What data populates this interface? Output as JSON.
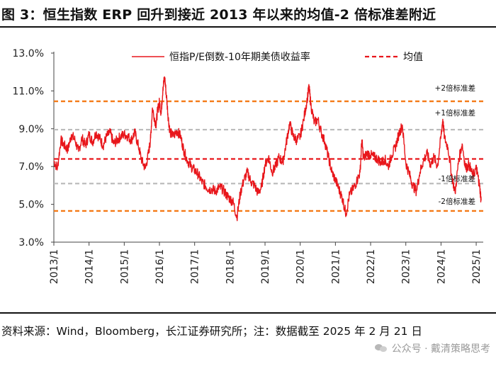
{
  "figure": {
    "title": "图 3：恒生指数 ERP 回升到接近 2013 年以来的均值-2 倍标准差附近",
    "source": "资料来源：Wind，Bloomberg，长江证券研究所；注：数据截至 2025 年 2 月 21 日",
    "watermark": "公众号 · 戴清策略思考"
  },
  "colors": {
    "series": "#e8161b",
    "mean": "#e8161b",
    "sd2": "#f47a16",
    "sd1": "#bdbdbd",
    "axis": "#444444"
  },
  "chart_data": {
    "type": "line",
    "title": "",
    "xlabel": "",
    "ylabel": "",
    "ylim": [
      3.0,
      13.0
    ],
    "yticks": [
      3.0,
      5.0,
      7.0,
      9.0,
      11.0,
      13.0
    ],
    "yticks_labels": [
      "3.0%",
      "5.0%",
      "7.0%",
      "9.0%",
      "11.0%",
      "13.0%"
    ],
    "xlim": [
      2013.0,
      2025.2
    ],
    "xticks": [
      2013,
      2014,
      2015,
      2016,
      2017,
      2018,
      2019,
      2020,
      2021,
      2022,
      2023,
      2024,
      2025
    ],
    "xticks_labels": [
      "2013/1",
      "2014/1",
      "2015/1",
      "2016/1",
      "2017/1",
      "2018/1",
      "2019/1",
      "2020/1",
      "2021/1",
      "2022/1",
      "2023/1",
      "2024/1",
      "2025/1"
    ],
    "grid": false,
    "legend_position": "top",
    "series": [
      {
        "name": "恒指P/E倒数-10年期美债收益率",
        "x": [
          2013.0,
          2013.1,
          2013.2,
          2013.3,
          2013.4,
          2013.5,
          2013.6,
          2013.7,
          2013.8,
          2013.9,
          2014.0,
          2014.1,
          2014.2,
          2014.3,
          2014.4,
          2014.5,
          2014.6,
          2014.7,
          2014.8,
          2014.9,
          2015.0,
          2015.1,
          2015.2,
          2015.3,
          2015.4,
          2015.5,
          2015.6,
          2015.7,
          2015.75,
          2015.8,
          2015.9,
          2015.95,
          2016.0,
          2016.05,
          2016.1,
          2016.15,
          2016.2,
          2016.25,
          2016.3,
          2016.4,
          2016.5,
          2016.6,
          2016.7,
          2016.8,
          2016.9,
          2017.0,
          2017.1,
          2017.2,
          2017.3,
          2017.4,
          2017.5,
          2017.6,
          2017.7,
          2017.8,
          2017.9,
          2018.0,
          2018.1,
          2018.2,
          2018.3,
          2018.4,
          2018.5,
          2018.6,
          2018.7,
          2018.8,
          2018.9,
          2019.0,
          2019.1,
          2019.2,
          2019.3,
          2019.4,
          2019.5,
          2019.6,
          2019.7,
          2019.8,
          2019.9,
          2020.0,
          2020.1,
          2020.2,
          2020.25,
          2020.3,
          2020.4,
          2020.5,
          2020.6,
          2020.7,
          2020.8,
          2020.9,
          2021.0,
          2021.1,
          2021.2,
          2021.3,
          2021.4,
          2021.5,
          2021.6,
          2021.7,
          2021.75,
          2021.8,
          2021.9,
          2022.0,
          2022.1,
          2022.2,
          2022.3,
          2022.4,
          2022.5,
          2022.6,
          2022.7,
          2022.8,
          2022.9,
          2023.0,
          2023.1,
          2023.2,
          2023.3,
          2023.4,
          2023.5,
          2023.6,
          2023.7,
          2023.8,
          2023.9,
          2024.0,
          2024.05,
          2024.1,
          2024.2,
          2024.3,
          2024.4,
          2024.5,
          2024.6,
          2024.7,
          2024.8,
          2024.9,
          2025.0,
          2025.05,
          2025.1,
          2025.14
        ],
        "values": [
          7.3,
          6.9,
          8.4,
          8.1,
          7.9,
          8.7,
          8.4,
          7.8,
          8.5,
          8.1,
          8.7,
          8.3,
          8.8,
          8.5,
          8.1,
          8.6,
          8.8,
          8.2,
          8.4,
          8.6,
          8.7,
          8.6,
          8.4,
          8.8,
          8.1,
          7.3,
          6.9,
          7.8,
          8.5,
          10.1,
          9.2,
          10.0,
          10.4,
          9.8,
          11.2,
          11.7,
          10.7,
          9.6,
          8.8,
          8.6,
          8.9,
          8.6,
          7.8,
          7.3,
          7.0,
          6.8,
          6.6,
          6.2,
          6.0,
          5.8,
          5.8,
          5.7,
          5.9,
          5.8,
          5.5,
          5.3,
          5.1,
          4.3,
          5.6,
          6.3,
          6.7,
          6.2,
          6.0,
          5.6,
          5.9,
          7.1,
          7.5,
          6.7,
          7.0,
          7.5,
          7.2,
          8.2,
          9.3,
          8.6,
          8.4,
          8.6,
          9.5,
          10.6,
          11.2,
          10.3,
          9.3,
          9.5,
          8.8,
          8.3,
          7.5,
          6.7,
          6.3,
          5.8,
          5.3,
          4.5,
          5.5,
          5.8,
          6.2,
          6.7,
          8.4,
          7.4,
          7.7,
          7.6,
          7.5,
          7.4,
          7.2,
          7.4,
          7.0,
          7.6,
          8.0,
          8.7,
          9.2,
          7.2,
          6.6,
          6.0,
          5.7,
          6.7,
          7.3,
          7.7,
          7.1,
          7.5,
          7.0,
          8.6,
          9.5,
          8.5,
          8.0,
          6.6,
          5.6,
          7.3,
          8.2,
          6.9,
          7.1,
          6.5,
          6.9,
          6.5,
          5.9,
          5.2
        ]
      }
    ],
    "reference_lines": [
      {
        "name": "均值",
        "value": 7.4,
        "style": "dashed-dark",
        "label": ""
      },
      {
        "name": "+2倍标准差",
        "value": 10.45,
        "style": "dashed-sd2",
        "label": "+2倍标准差"
      },
      {
        "name": "+1倍标准差",
        "value": 8.95,
        "style": "dashed-sd1",
        "label": "+1倍标准差"
      },
      {
        "name": "-1倍标准差",
        "value": 6.1,
        "style": "dashed-sd1",
        "label": "-1倍标准差"
      },
      {
        "name": "-2倍标准差",
        "value": 4.65,
        "style": "dashed-sd2",
        "label": "-2倍标准差"
      }
    ],
    "legend": [
      {
        "label": "恒指P/E倒数-10年期美债收益率",
        "style": "solid"
      },
      {
        "label": "均值",
        "style": "dashed-dark"
      }
    ]
  }
}
